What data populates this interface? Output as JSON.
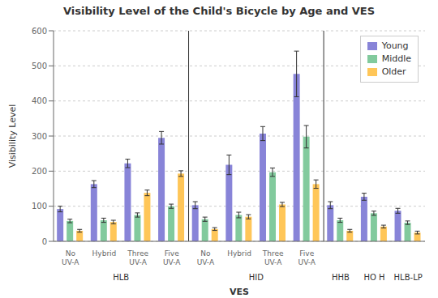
{
  "chart_data": {
    "type": "bar",
    "title": "Visibility Level of the Child's Bicycle by Age and VES",
    "xlabel": "VES",
    "ylabel": "Visibility Level",
    "categories": [
      "No\nUV-A",
      "Hybrid",
      "Three\nUV-A",
      "Five\nUV-A",
      "No\nUV-A",
      "Hybrid",
      "Three\nUV-A",
      "Five\nUV-A",
      null,
      null,
      null
    ],
    "category_groups": [
      "HLB",
      "HLB",
      "HLB",
      "HLB",
      "HID",
      "HID",
      "HID",
      "HID",
      "HHB",
      "HO H",
      "HLB-LP"
    ],
    "series": [
      {
        "name": "Young",
        "color": "#8884d8",
        "values": [
          92,
          163,
          222,
          295,
          103,
          218,
          307,
          477,
          103,
          127,
          87
        ],
        "errors": [
          8,
          10,
          12,
          18,
          10,
          28,
          20,
          65,
          10,
          10,
          7
        ]
      },
      {
        "name": "Middle",
        "color": "#82ca9d",
        "values": [
          58,
          60,
          75,
          100,
          63,
          75,
          197,
          298,
          60,
          80,
          53
        ],
        "errors": [
          5,
          6,
          6,
          6,
          6,
          8,
          12,
          32,
          6,
          6,
          5
        ]
      },
      {
        "name": "Older",
        "color": "#ffc658",
        "values": [
          30,
          55,
          138,
          193,
          35,
          70,
          105,
          163,
          30,
          42,
          25
        ],
        "errors": [
          4,
          5,
          8,
          8,
          4,
          6,
          6,
          12,
          4,
          4,
          4
        ]
      }
    ],
    "ylim": [
      0,
      600
    ],
    "yticks": [
      0,
      100,
      200,
      300,
      400,
      500,
      600
    ],
    "grid": true,
    "legend": "upper right"
  }
}
